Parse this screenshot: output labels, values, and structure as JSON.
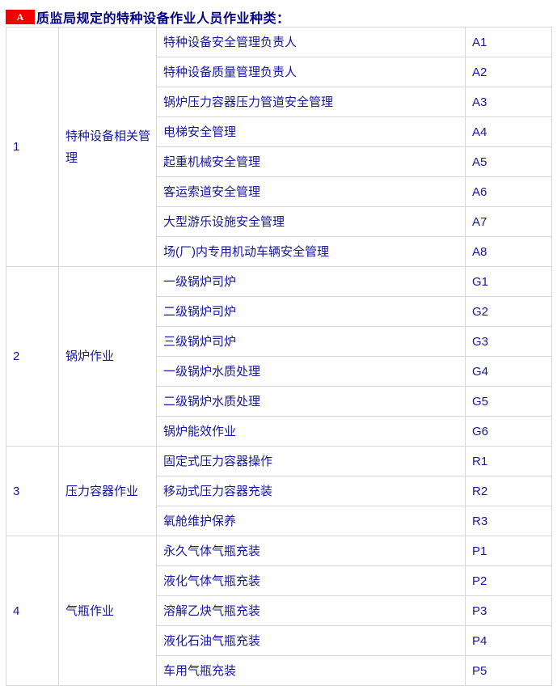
{
  "header": {
    "badge": "A",
    "title": "质监局规定的特种设备作业人员作业种类："
  },
  "colors": {
    "badge_red": "#f40000",
    "title_blue": "#000080",
    "cell_text_blue": "#16169b",
    "border_gray": "#d8d8d8"
  },
  "table": {
    "sections": [
      {
        "num": "1",
        "category": "特种设备相关管理",
        "items": [
          {
            "name": "特种设备安全管理负责人",
            "code": "A1"
          },
          {
            "name": "特种设备质量管理负责人",
            "code": "A2"
          },
          {
            "name": "锅炉压力容器压力管道安全管理",
            "code": "A3"
          },
          {
            "name": "电梯安全管理",
            "code": "A4"
          },
          {
            "name": "起重机械安全管理",
            "code": "A5"
          },
          {
            "name": "客运索道安全管理",
            "code": "A6"
          },
          {
            "name": "大型游乐设施安全管理",
            "code": "A7"
          },
          {
            "name": "场(厂)内专用机动车辆安全管理",
            "code": "A8"
          }
        ]
      },
      {
        "num": "2",
        "category": "锅炉作业",
        "items": [
          {
            "name": "一级锅炉司炉",
            "code": "G1"
          },
          {
            "name": "二级锅炉司炉",
            "code": "G2"
          },
          {
            "name": "三级锅炉司炉",
            "code": "G3"
          },
          {
            "name": "一级锅炉水质处理",
            "code": "G4"
          },
          {
            "name": "二级锅炉水质处理",
            "code": "G5"
          },
          {
            "name": "锅炉能效作业",
            "code": "G6"
          }
        ]
      },
      {
        "num": "3",
        "category": "压力容器作业",
        "items": [
          {
            "name": "固定式压力容器操作",
            "code": "R1"
          },
          {
            "name": "移动式压力容器充装",
            "code": "R2"
          },
          {
            "name": "氧舱维护保养",
            "code": "R3"
          }
        ]
      },
      {
        "num": "4",
        "category": "气瓶作业",
        "items": [
          {
            "name": "永久气体气瓶充装",
            "code": "P1"
          },
          {
            "name": "液化气体气瓶充装",
            "code": "P2"
          },
          {
            "name": "溶解乙炔气瓶充装",
            "code": "P3"
          },
          {
            "name": "液化石油气瓶充装",
            "code": "P4"
          },
          {
            "name": "车用气瓶充装",
            "code": "P5"
          }
        ]
      }
    ]
  }
}
